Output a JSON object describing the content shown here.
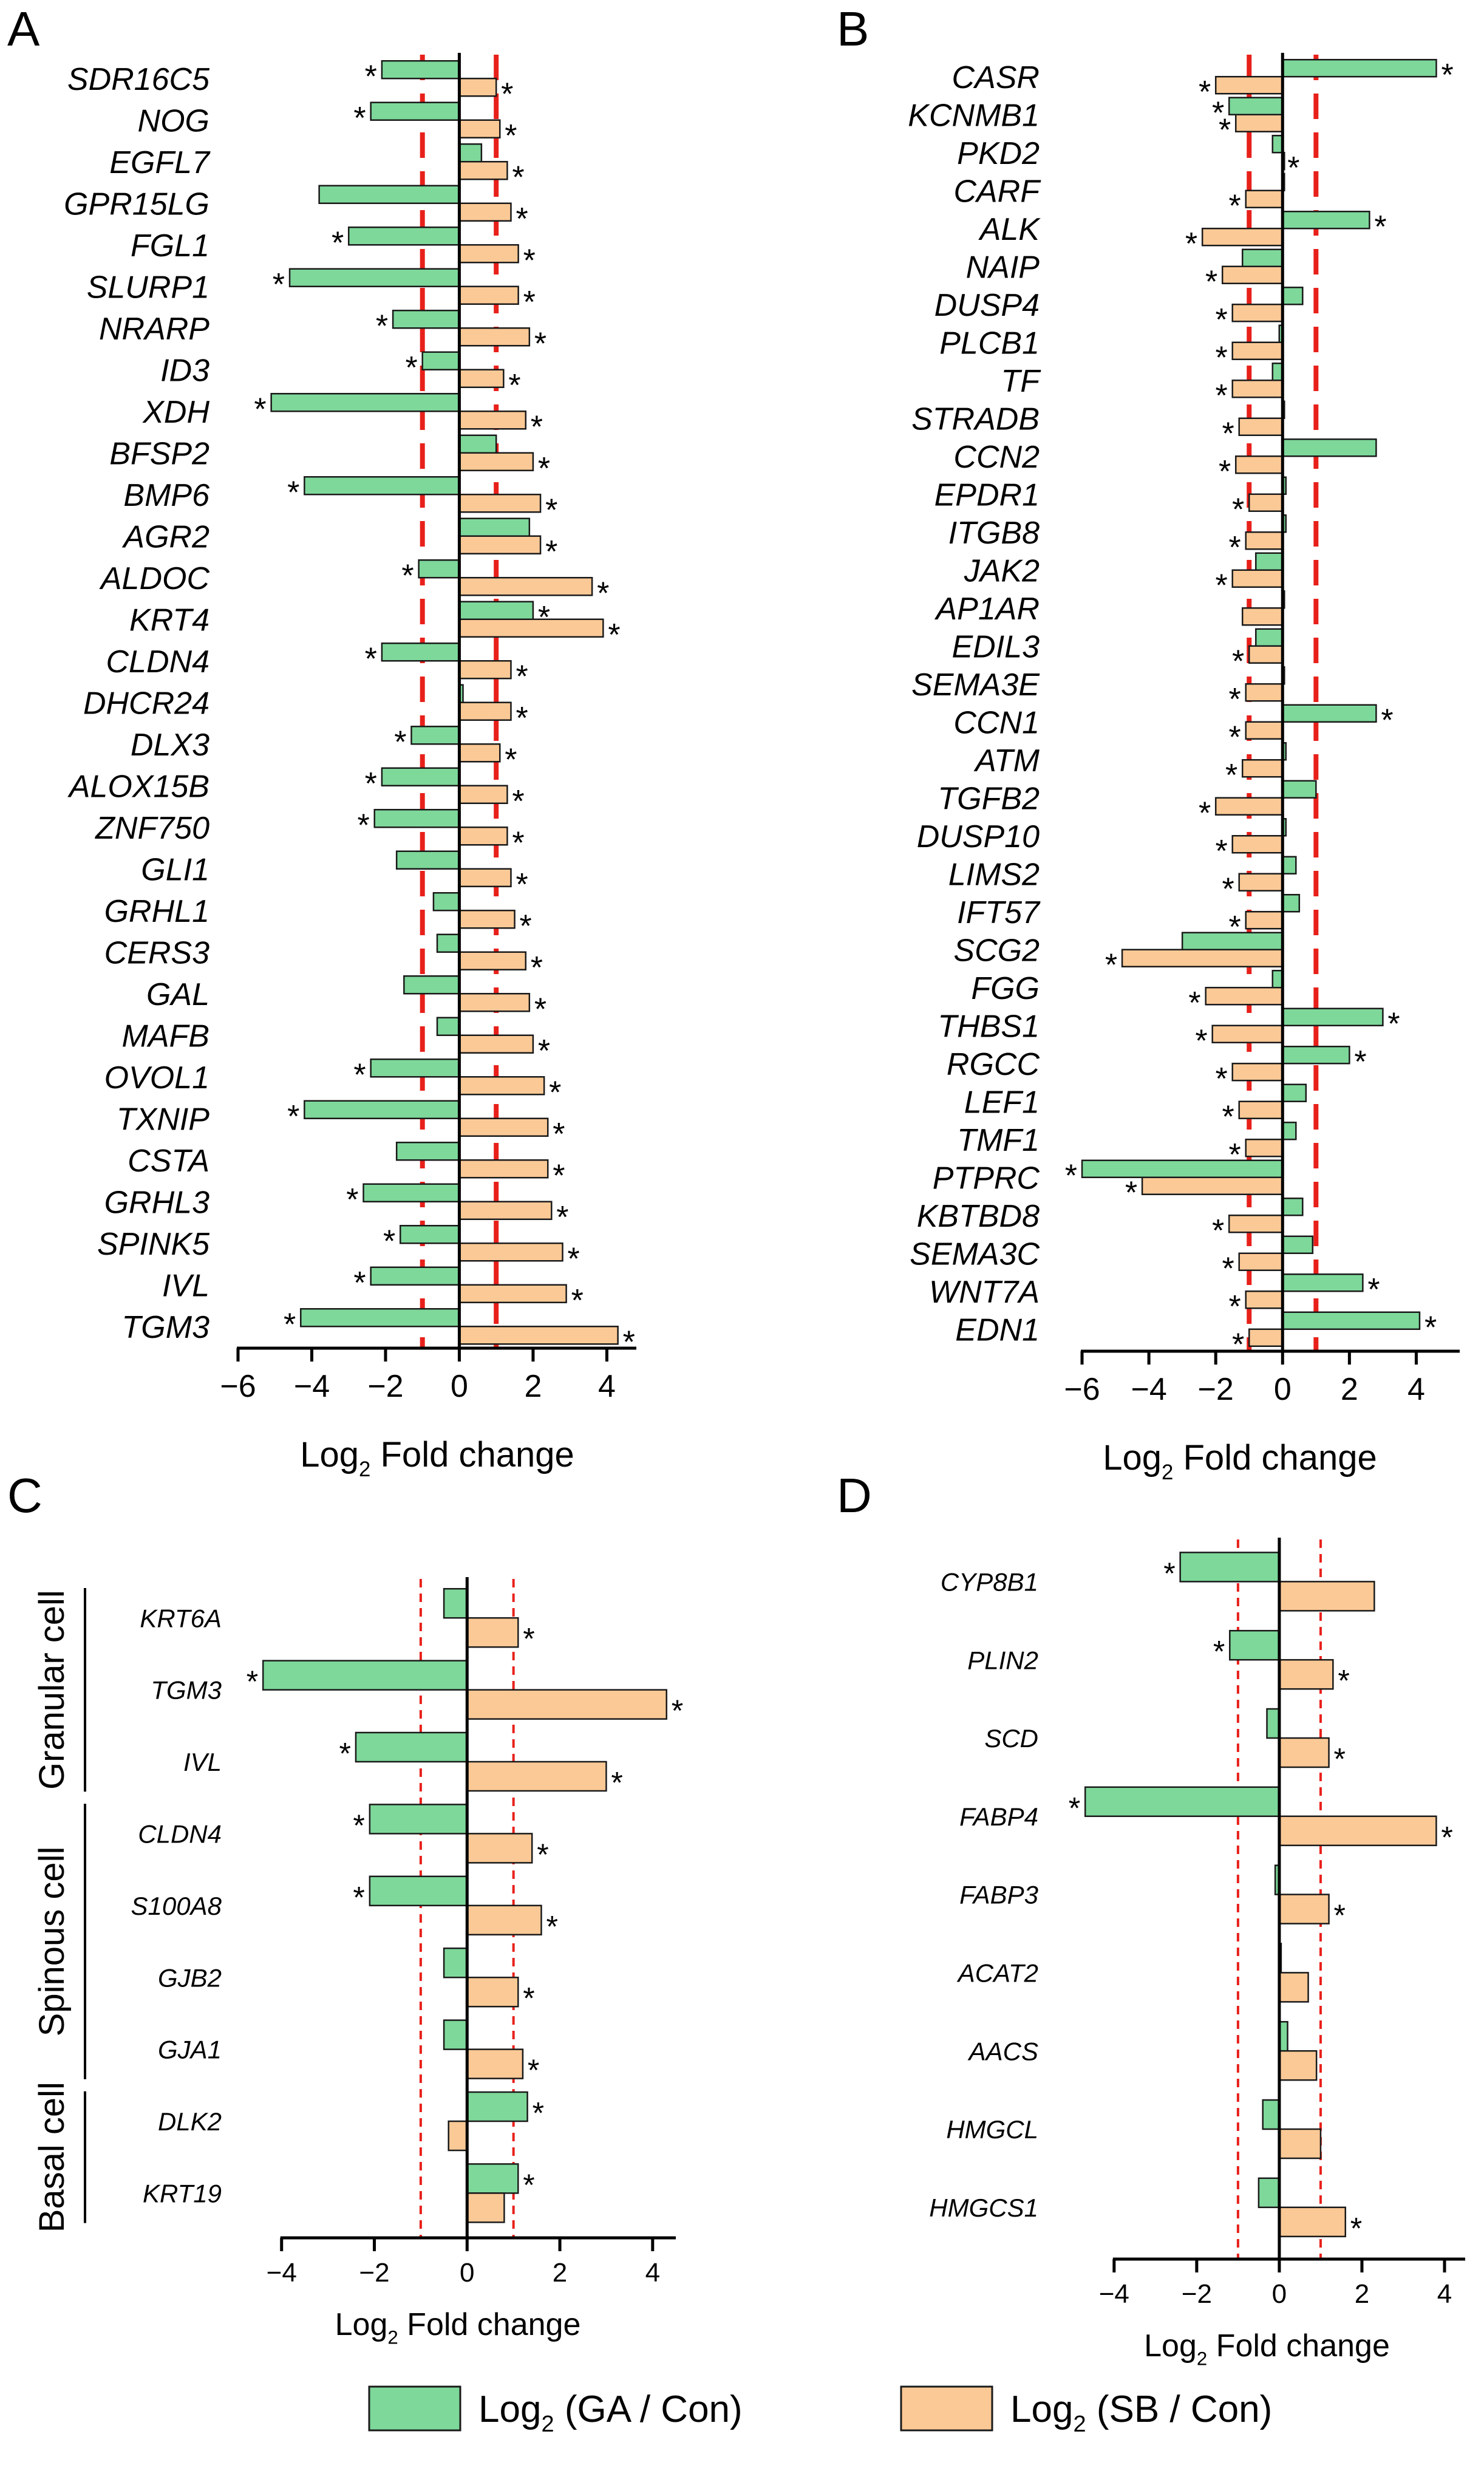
{
  "colors": {
    "ga": "#7dd89a",
    "sb": "#fbc996",
    "threshold": "#e8201a",
    "axis": "#000000"
  },
  "legend": {
    "items": [
      {
        "series": "ga",
        "label_pre": "Log",
        "label_sub": "2",
        "label_post": " (GA / Con)"
      },
      {
        "series": "sb",
        "label_pre": "Log",
        "label_sub": "2",
        "label_post": " (SB / Con)"
      }
    ]
  },
  "chart_data": [
    {
      "panel": "A",
      "type": "bar",
      "orientation": "horizontal",
      "xlabel_pre": "Log",
      "xlabel_sub": "2",
      "xlabel_post": " Fold change",
      "xlim": [
        -6,
        4.8
      ],
      "xticks": [
        -6,
        -4,
        -2,
        0,
        2,
        4
      ],
      "thresholds": [
        -1,
        1
      ],
      "categories": [
        "SDR16C5",
        "NOG",
        "EGFL7",
        "GPR15LG",
        "FGL1",
        "SLURP1",
        "NRARP",
        "ID3",
        "XDH",
        "BFSP2",
        "BMP6",
        "AGR2",
        "ALDOC",
        "KRT4",
        "CLDN4",
        "DHCR24",
        "DLX3",
        "ALOX15B",
        "ZNF750",
        "GLI1",
        "GRHL1",
        "CERS3",
        "GAL",
        "MAFB",
        "OVOL1",
        "TXNIP",
        "CSTA",
        "GRHL3",
        "SPINK5",
        "IVL",
        "TGM3"
      ],
      "series": [
        {
          "key": "ga",
          "name": "Log2 (GA / Con)",
          "values": [
            -2.1,
            -2.4,
            0.6,
            -3.8,
            -3.0,
            -4.6,
            -1.8,
            -1.0,
            -5.1,
            1.0,
            -4.2,
            1.9,
            -1.1,
            2.0,
            -2.1,
            0.1,
            -1.3,
            -2.1,
            -2.3,
            -1.7,
            -0.7,
            -0.6,
            -1.5,
            -0.6,
            -2.4,
            -4.2,
            -1.7,
            -2.6,
            -1.6,
            -2.4,
            -4.3
          ],
          "sig": [
            true,
            true,
            false,
            false,
            true,
            true,
            true,
            true,
            true,
            false,
            true,
            false,
            true,
            true,
            true,
            false,
            true,
            true,
            true,
            false,
            false,
            false,
            false,
            false,
            true,
            true,
            false,
            true,
            true,
            true,
            true
          ]
        },
        {
          "key": "sb",
          "name": "Log2 (SB / Con)",
          "values": [
            1.0,
            1.1,
            1.3,
            1.4,
            1.6,
            1.6,
            1.9,
            1.2,
            1.8,
            2.0,
            2.2,
            2.2,
            3.6,
            3.9,
            1.4,
            1.4,
            1.1,
            1.3,
            1.3,
            1.4,
            1.5,
            1.8,
            1.9,
            2.0,
            2.3,
            2.4,
            2.4,
            2.5,
            2.8,
            2.9,
            4.3
          ],
          "sig": [
            true,
            true,
            true,
            true,
            true,
            true,
            true,
            true,
            true,
            true,
            true,
            true,
            true,
            true,
            true,
            true,
            true,
            true,
            true,
            true,
            true,
            true,
            true,
            true,
            true,
            true,
            true,
            true,
            true,
            true,
            true
          ]
        }
      ]
    },
    {
      "panel": "B",
      "type": "bar",
      "orientation": "horizontal",
      "xlabel_pre": "Log",
      "xlabel_sub": "2",
      "xlabel_post": " Fold change",
      "xlim": [
        -6.4,
        5.3
      ],
      "xticks": [
        -6,
        -4,
        -2,
        0,
        2,
        4
      ],
      "thresholds": [
        -1,
        1
      ],
      "categories": [
        "CASR",
        "KCNMB1",
        "PKD2",
        "CARF",
        "ALK",
        "NAIP",
        "DUSP4",
        "PLCB1",
        "TF",
        "STRADB",
        "CCN2",
        "EPDR1",
        "ITGB8",
        "JAK2",
        "AP1AR",
        "EDIL3",
        "SEMA3E",
        "CCN1",
        "ATM",
        "TGFB2",
        "DUSP10",
        "LIMS2",
        "IFT57",
        "SCG2",
        "FGG",
        "THBS1",
        "RGCC",
        "LEF1",
        "TMF1",
        "PTPRC",
        "KBTBD8",
        "SEMA3C",
        "WNT7A",
        "EDN1"
      ],
      "series": [
        {
          "key": "ga",
          "name": "Log2 (GA / Con)",
          "values": [
            4.6,
            -1.6,
            -0.3,
            0.0,
            2.6,
            -1.2,
            0.6,
            -0.1,
            -0.3,
            0.0,
            2.8,
            0.1,
            0.1,
            -0.8,
            0.0,
            -0.8,
            0.0,
            2.8,
            0.1,
            1.0,
            0.1,
            0.4,
            0.5,
            -3.0,
            -0.3,
            3.0,
            2.0,
            0.7,
            0.4,
            -6.0,
            0.6,
            0.9,
            2.4,
            4.1
          ],
          "sig": [
            true,
            true,
            false,
            false,
            true,
            false,
            false,
            false,
            false,
            false,
            false,
            false,
            false,
            false,
            false,
            false,
            false,
            true,
            false,
            false,
            false,
            false,
            false,
            false,
            false,
            true,
            true,
            false,
            false,
            true,
            false,
            false,
            true,
            true
          ]
        },
        {
          "key": "sb",
          "name": "Log2 (SB / Con)",
          "values": [
            -2.0,
            -1.4,
            0.0,
            -1.1,
            -2.4,
            -1.8,
            -1.5,
            -1.5,
            -1.5,
            -1.3,
            -1.4,
            -1.0,
            -1.1,
            -1.5,
            -1.2,
            -1.0,
            -1.1,
            -1.1,
            -1.2,
            -2.0,
            -1.5,
            -1.3,
            -1.1,
            -4.8,
            -2.3,
            -2.1,
            -1.5,
            -1.3,
            -1.1,
            -4.2,
            -1.6,
            -1.3,
            -1.1,
            -1.0
          ],
          "sig": [
            true,
            true,
            true,
            true,
            true,
            true,
            true,
            true,
            true,
            true,
            true,
            true,
            true,
            true,
            false,
            true,
            true,
            true,
            true,
            true,
            true,
            true,
            true,
            true,
            true,
            true,
            true,
            true,
            true,
            true,
            true,
            true,
            true,
            true
          ]
        }
      ]
    },
    {
      "panel": "C",
      "type": "bar",
      "orientation": "horizontal",
      "xlabel_pre": "Log",
      "xlabel_sub": "2",
      "xlabel_post": " Fold change",
      "xlim": [
        -4.9,
        4.5
      ],
      "xticks": [
        -4,
        -2,
        0,
        2,
        4
      ],
      "thresholds": [
        -1,
        1
      ],
      "categories": [
        "KRT6A",
        "TGM3",
        "IVL",
        "CLDN4",
        "S100A8",
        "GJB2",
        "GJA1",
        "DLK2",
        "KRT19"
      ],
      "groups": [
        {
          "label": "Granular cell",
          "start": 0,
          "end": 2
        },
        {
          "label": "Spinous cell",
          "start": 3,
          "end": 6
        },
        {
          "label": "Basal cell",
          "start": 7,
          "end": 8
        }
      ],
      "series": [
        {
          "key": "ga",
          "name": "Log2 (GA / Con)",
          "values": [
            -0.5,
            -4.4,
            -2.4,
            -2.1,
            -2.1,
            -0.5,
            -0.5,
            1.3,
            1.1
          ],
          "sig": [
            false,
            true,
            true,
            true,
            true,
            false,
            false,
            true,
            true
          ]
        },
        {
          "key": "sb",
          "name": "Log2 (SB / Con)",
          "values": [
            1.1,
            4.3,
            3.0,
            1.4,
            1.6,
            1.1,
            1.2,
            -0.4,
            0.8
          ],
          "sig": [
            true,
            true,
            true,
            true,
            true,
            true,
            true,
            false,
            false
          ]
        }
      ]
    },
    {
      "panel": "D",
      "type": "bar",
      "orientation": "horizontal",
      "xlabel_pre": "Log",
      "xlabel_sub": "2",
      "xlabel_post": " Fold change",
      "xlim": [
        -5.1,
        4.5
      ],
      "xticks": [
        -4,
        -2,
        0,
        2,
        4
      ],
      "thresholds": [
        -1,
        1
      ],
      "categories": [
        "CYP8B1",
        "PLIN2",
        "SCD",
        "FABP4",
        "FABP3",
        "ACAT2",
        "AACS",
        "HMGCL",
        "HMGCS1"
      ],
      "series": [
        {
          "key": "ga",
          "name": "Log2 (GA / Con)",
          "values": [
            -2.4,
            -1.2,
            -0.3,
            -4.7,
            -0.1,
            0.0,
            0.2,
            -0.4,
            -0.5
          ],
          "sig": [
            true,
            true,
            false,
            true,
            false,
            false,
            false,
            false,
            false
          ]
        },
        {
          "key": "sb",
          "name": "Log2 (SB / Con)",
          "values": [
            2.3,
            1.3,
            1.2,
            3.8,
            1.2,
            0.7,
            0.9,
            1.0,
            1.6
          ],
          "sig": [
            false,
            true,
            true,
            true,
            true,
            false,
            false,
            false,
            true
          ]
        }
      ]
    }
  ]
}
